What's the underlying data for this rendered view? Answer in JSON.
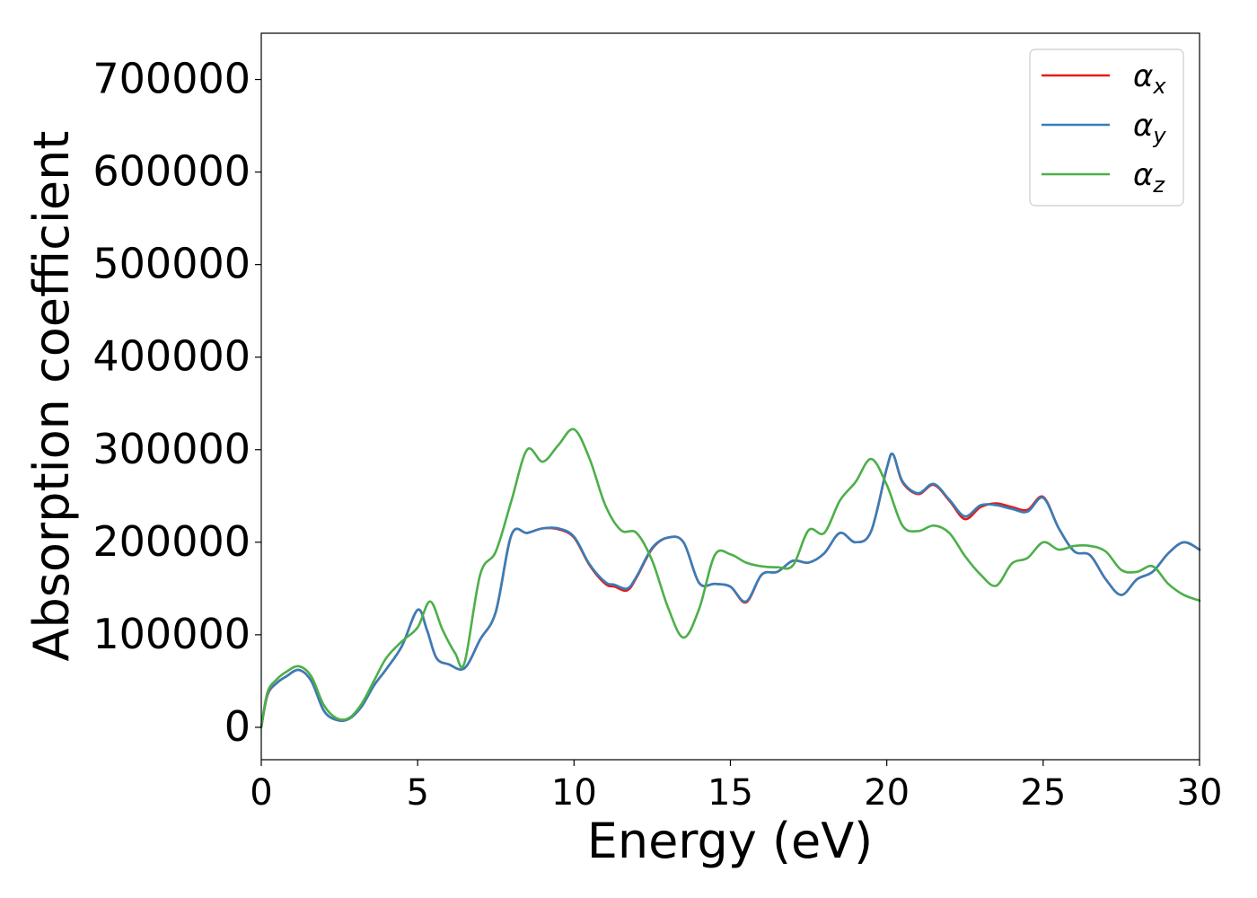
{
  "chart_data": {
    "type": "line",
    "title": "",
    "xlabel": "Energy (eV)",
    "ylabel": "Absorption coefficient",
    "xlim": [
      0,
      30
    ],
    "ylim": [
      -35000,
      750000
    ],
    "xticks": [
      0,
      5,
      10,
      15,
      20,
      25,
      30
    ],
    "yticks": [
      0,
      100000,
      200000,
      300000,
      400000,
      500000,
      600000,
      700000
    ],
    "grid": false,
    "legend_position": "top-right",
    "series": [
      {
        "name": "αx",
        "symbol": "α",
        "subscript": "x",
        "color": "#e41a1c",
        "x": [
          0.0,
          0.2,
          0.5,
          0.8,
          1.2,
          1.6,
          2.0,
          2.4,
          2.8,
          3.2,
          3.6,
          4.0,
          4.5,
          5.0,
          5.3,
          5.6,
          6.0,
          6.5,
          7.0,
          7.5,
          8.0,
          8.5,
          9.0,
          9.5,
          10.0,
          10.5,
          11.0,
          11.3,
          11.7,
          12.0,
          12.5,
          13.0,
          13.5,
          14.0,
          14.5,
          15.0,
          15.5,
          16.0,
          16.5,
          17.0,
          17.5,
          18.0,
          18.5,
          19.0,
          19.5,
          20.0,
          20.2,
          20.5,
          21.0,
          21.5,
          22.0,
          22.5,
          23.0,
          23.5,
          24.0,
          24.5,
          25.0,
          25.5,
          26.0,
          26.5,
          27.0,
          27.5,
          28.0,
          28.5,
          29.0,
          29.5,
          30.0
        ],
        "y": [
          0,
          35000,
          48000,
          55000,
          62000,
          50000,
          18000,
          8000,
          9000,
          22000,
          45000,
          63000,
          88000,
          127000,
          105000,
          75000,
          68000,
          64000,
          95000,
          125000,
          208000,
          210000,
          215000,
          214000,
          205000,
          175000,
          155000,
          152000,
          148000,
          162000,
          193000,
          205000,
          200000,
          156000,
          155000,
          152000,
          135000,
          165000,
          168000,
          180000,
          178000,
          188000,
          210000,
          200000,
          212000,
          280000,
          295000,
          265000,
          252000,
          262000,
          245000,
          225000,
          238000,
          242000,
          238000,
          235000,
          249000,
          215000,
          190000,
          186000,
          160000,
          143000,
          160000,
          168000,
          188000,
          200000,
          192000
        ]
      },
      {
        "name": "αy",
        "symbol": "α",
        "subscript": "y",
        "color": "#377eb8",
        "x": [
          0.0,
          0.2,
          0.5,
          0.8,
          1.2,
          1.6,
          2.0,
          2.4,
          2.8,
          3.2,
          3.6,
          4.0,
          4.5,
          5.0,
          5.3,
          5.6,
          6.0,
          6.5,
          7.0,
          7.5,
          8.0,
          8.5,
          9.0,
          9.5,
          10.0,
          10.5,
          11.0,
          11.3,
          11.7,
          12.0,
          12.5,
          13.0,
          13.5,
          14.0,
          14.5,
          15.0,
          15.5,
          16.0,
          16.5,
          17.0,
          17.5,
          18.0,
          18.5,
          19.0,
          19.5,
          20.0,
          20.2,
          20.5,
          21.0,
          21.5,
          22.0,
          22.5,
          23.0,
          23.5,
          24.0,
          24.5,
          25.0,
          25.5,
          26.0,
          26.5,
          27.0,
          27.5,
          28.0,
          28.5,
          29.0,
          29.5,
          30.0
        ],
        "y": [
          0,
          36000,
          48000,
          55000,
          62000,
          50000,
          18000,
          8000,
          9000,
          22000,
          45000,
          63000,
          88000,
          127000,
          105000,
          75000,
          68000,
          64000,
          95000,
          125000,
          208000,
          210000,
          215000,
          215000,
          206000,
          176000,
          157000,
          154000,
          150000,
          163000,
          194000,
          205000,
          200000,
          156000,
          155000,
          152000,
          136000,
          165000,
          168000,
          180000,
          178000,
          188000,
          210000,
          200000,
          212000,
          280000,
          295000,
          266000,
          253000,
          263000,
          246000,
          228000,
          240000,
          240000,
          236000,
          233000,
          248000,
          215000,
          190000,
          186000,
          160000,
          143000,
          160000,
          168000,
          188000,
          200000,
          192000
        ]
      },
      {
        "name": "αz",
        "symbol": "α",
        "subscript": "z",
        "color": "#4daf4a",
        "x": [
          0.0,
          0.2,
          0.5,
          0.8,
          1.2,
          1.6,
          2.0,
          2.4,
          2.8,
          3.2,
          3.6,
          4.0,
          4.5,
          5.0,
          5.4,
          5.8,
          6.2,
          6.5,
          7.0,
          7.5,
          8.0,
          8.5,
          9.0,
          9.5,
          10.0,
          10.5,
          11.0,
          11.5,
          12.0,
          12.5,
          13.0,
          13.5,
          14.0,
          14.5,
          15.0,
          15.5,
          16.0,
          16.5,
          17.0,
          17.5,
          18.0,
          18.5,
          19.0,
          19.5,
          20.0,
          20.5,
          21.0,
          21.5,
          22.0,
          22.5,
          23.0,
          23.5,
          24.0,
          24.5,
          25.0,
          25.5,
          26.0,
          26.5,
          27.0,
          27.5,
          28.0,
          28.5,
          29.0,
          29.5,
          30.0
        ],
        "y": [
          0,
          38000,
          52000,
          60000,
          66000,
          55000,
          24000,
          10000,
          10000,
          25000,
          50000,
          75000,
          93000,
          108000,
          136000,
          105000,
          80000,
          70000,
          165000,
          190000,
          245000,
          300000,
          287000,
          305000,
          322000,
          290000,
          240000,
          213000,
          210000,
          180000,
          130000,
          97000,
          128000,
          186000,
          187000,
          178000,
          174000,
          173000,
          175000,
          213000,
          210000,
          245000,
          265000,
          290000,
          262000,
          218000,
          212000,
          218000,
          210000,
          185000,
          165000,
          153000,
          177000,
          183000,
          200000,
          192000,
          196000,
          196000,
          190000,
          170000,
          168000,
          174000,
          155000,
          143000,
          137000
        ]
      }
    ]
  }
}
